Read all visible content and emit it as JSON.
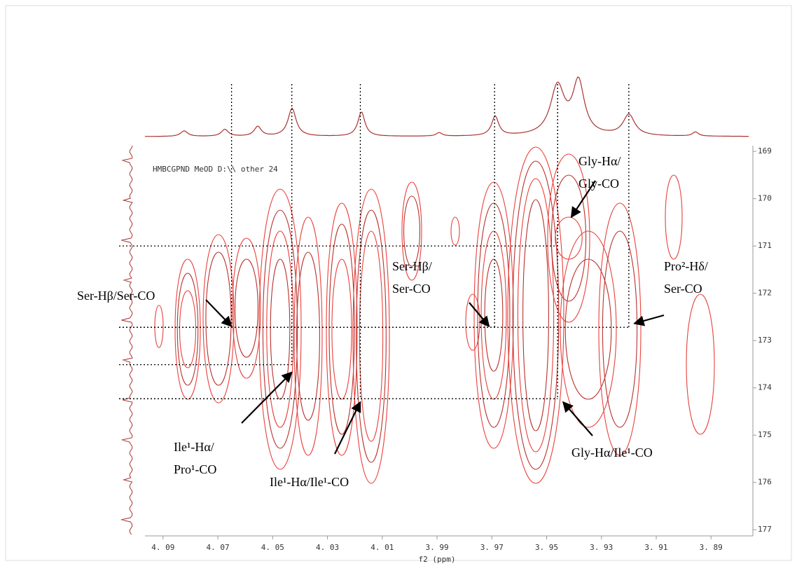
{
  "chart_data": {
    "type": "contour",
    "xlabel": "f2 (ppm)",
    "xlim": [
      4.0966,
      3.876
    ],
    "xticks": [
      {
        "value": 4.09,
        "label": "4. 09"
      },
      {
        "value": 4.07,
        "label": "4. 07"
      },
      {
        "value": 4.05,
        "label": "4. 05"
      },
      {
        "value": 4.03,
        "label": "4. 03"
      },
      {
        "value": 4.01,
        "label": "4. 01"
      },
      {
        "value": 3.99,
        "label": "3. 99"
      },
      {
        "value": 3.97,
        "label": "3. 97"
      },
      {
        "value": 3.95,
        "label": "3. 95"
      },
      {
        "value": 3.93,
        "label": "3. 93"
      },
      {
        "value": 3.91,
        "label": "3. 91"
      },
      {
        "value": 3.89,
        "label": "3. 89"
      }
    ],
    "ylim": [
      168.88,
      177.13
    ],
    "yticks": [
      169,
      170,
      171,
      172,
      173,
      174,
      175,
      176,
      177
    ],
    "experiment_label": "HMBCGPND MeOD D:\\\\ other 24",
    "guides": [
      {
        "x": 4.065,
        "y": 172.72
      },
      {
        "x": 4.043,
        "y": 173.51
      },
      {
        "x": 4.018,
        "y": 174.23
      },
      {
        "x": 3.969,
        "y": 172.72
      },
      {
        "x": 3.946,
        "y": 174.23
      },
      {
        "x": 3.946,
        "y": 171.0
      },
      {
        "x": 3.92,
        "y": 172.72
      }
    ],
    "annotations": [
      {
        "lines": [
          "Gly-Hα/",
          "Gly-CO"
        ],
        "x": 3.941,
        "y": 170.39
      },
      {
        "lines": [
          "Pro²-Hδ/",
          "Ser-CO"
        ],
        "x": 3.918,
        "y": 172.64
      },
      {
        "lines": [
          "Ser-Hβ/",
          "Ser-CO"
        ],
        "x": 3.971,
        "y": 172.7
      },
      {
        "lines": [
          "Ser-Hβ/Ser-CO"
        ],
        "x": 4.065,
        "y": 172.7
      },
      {
        "lines": [
          "Ile¹-Hα/",
          "Pro¹-CO"
        ],
        "x": 4.043,
        "y": 173.67
      },
      {
        "lines": [
          "Ile¹-Hα/Ile¹-CO"
        ],
        "x": 4.018,
        "y": 174.3
      },
      {
        "lines": [
          "Gly-Hα/Ile¹-CO"
        ],
        "x": 3.944,
        "y": 174.3
      }
    ]
  }
}
